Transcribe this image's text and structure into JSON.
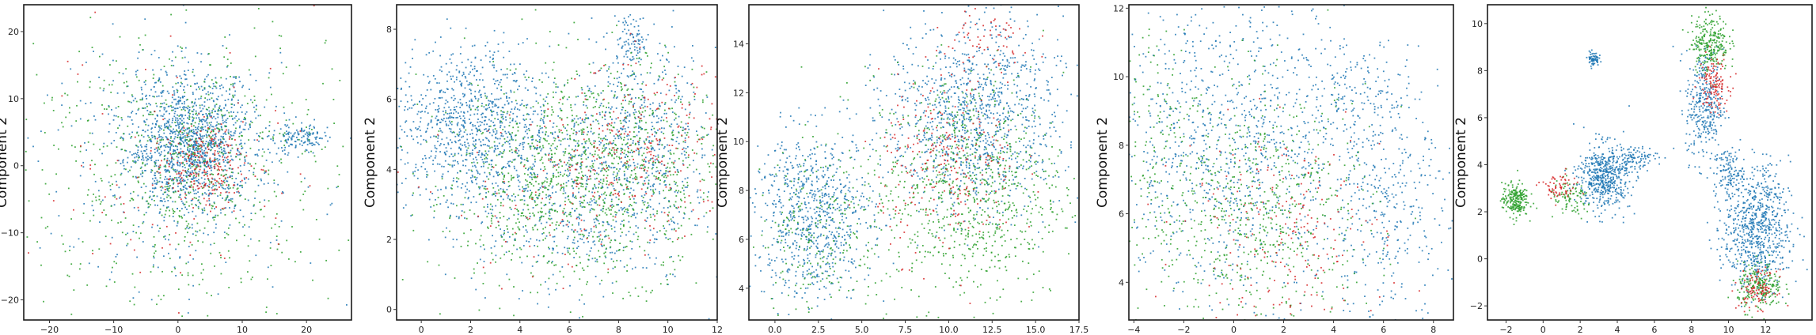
{
  "colors": {
    "blue": "#1f77b4",
    "green": "#2ca02c",
    "red": "#d62728"
  },
  "chart_data": [
    {
      "type": "scatter",
      "ylabel": "Component 2",
      "xlim": [
        -24,
        27
      ],
      "ylim": [
        -23,
        24
      ],
      "xticks": [
        -20,
        -10,
        0,
        10,
        20
      ],
      "yticks": [
        -20,
        -10,
        0,
        10,
        20
      ],
      "xtick_labels": [
        "−20",
        "−10",
        "0",
        "10",
        "20"
      ],
      "ytick_labels": [
        "−20",
        "−10",
        "0",
        "10",
        "20"
      ],
      "grid": false,
      "series": [
        {
          "color": "blue",
          "clusters": [
            {
              "x": 2,
              "y": 3,
              "sx": 5,
              "sy": 5,
              "w": 60
            },
            {
              "x": 19,
              "y": 4,
              "sx": 2.2,
              "sy": 1.2,
              "w": 6
            },
            {
              "x": 0,
              "y": 0,
              "sx": 11,
              "sy": 10,
              "w": 12
            }
          ]
        },
        {
          "color": "green",
          "clusters": [
            {
              "x": 0,
              "y": 0,
              "sx": 12,
              "sy": 11,
              "w": 30
            },
            {
              "x": 3,
              "y": 2,
              "sx": 5,
              "sy": 5,
              "w": 8
            }
          ]
        },
        {
          "color": "red",
          "clusters": [
            {
              "x": 4,
              "y": 0,
              "sx": 3,
              "sy": 3,
              "w": 10
            },
            {
              "x": 0,
              "y": 0,
              "sx": 11,
              "sy": 10,
              "w": 4
            }
          ]
        }
      ]
    },
    {
      "type": "scatter",
      "ylabel": "Component 2",
      "xlim": [
        -1,
        12
      ],
      "ylim": [
        -0.3,
        8.7
      ],
      "xticks": [
        0,
        2,
        4,
        6,
        8,
        10,
        12
      ],
      "yticks": [
        0,
        2,
        4,
        6,
        8
      ],
      "xtick_labels": [
        "0",
        "2",
        "4",
        "6",
        "8",
        "10",
        "12"
      ],
      "ytick_labels": [
        "0",
        "2",
        "4",
        "6",
        "8"
      ],
      "grid": false,
      "series": [
        {
          "color": "blue",
          "clusters": [
            {
              "x": 2,
              "y": 5.3,
              "sx": 1.6,
              "sy": 1.1,
              "w": 40
            },
            {
              "x": 6,
              "y": 3.3,
              "sx": 2.5,
              "sy": 1.4,
              "w": 30
            },
            {
              "x": 9,
              "y": 5,
              "sx": 1.5,
              "sy": 1.3,
              "w": 20
            },
            {
              "x": 8.5,
              "y": 7.6,
              "sx": 0.4,
              "sy": 0.4,
              "w": 4
            }
          ]
        },
        {
          "color": "green",
          "clusters": [
            {
              "x": 7.5,
              "y": 4,
              "sx": 2.3,
              "sy": 1.5,
              "w": 45
            },
            {
              "x": 4,
              "y": 3.5,
              "sx": 2,
              "sy": 1.5,
              "w": 15
            }
          ]
        },
        {
          "color": "red",
          "clusters": [
            {
              "x": 9,
              "y": 4.5,
              "sx": 1.8,
              "sy": 1.2,
              "w": 12
            },
            {
              "x": 5,
              "y": 3,
              "sx": 2,
              "sy": 1.2,
              "w": 4
            }
          ]
        }
      ]
    },
    {
      "type": "scatter",
      "ylabel": "Component 2",
      "xlim": [
        -1.5,
        17.5
      ],
      "ylim": [
        2.7,
        15.6
      ],
      "xticks": [
        0,
        2.5,
        5,
        7.5,
        10,
        12.5,
        15,
        17.5
      ],
      "yticks": [
        4,
        6,
        8,
        10,
        12,
        14
      ],
      "xtick_labels": [
        "0.0",
        "2.5",
        "5.0",
        "7.5",
        "10.0",
        "12.5",
        "15.0",
        "17.5"
      ],
      "ytick_labels": [
        "4",
        "6",
        "8",
        "10",
        "12",
        "14"
      ],
      "grid": false,
      "series": [
        {
          "color": "blue",
          "clusters": [
            {
              "x": 2.2,
              "y": 7,
              "sx": 1.7,
              "sy": 1.7,
              "w": 35
            },
            {
              "x": 11.5,
              "y": 11,
              "sx": 2.5,
              "sy": 1.9,
              "w": 50
            }
          ]
        },
        {
          "color": "green",
          "clusters": [
            {
              "x": 11,
              "y": 8,
              "sx": 2.8,
              "sy": 2.4,
              "w": 40
            },
            {
              "x": 2.5,
              "y": 6.5,
              "sx": 1.7,
              "sy": 1.7,
              "w": 10
            }
          ]
        },
        {
          "color": "red",
          "clusters": [
            {
              "x": 10,
              "y": 9,
              "sx": 2,
              "sy": 1.8,
              "w": 12
            },
            {
              "x": 12,
              "y": 14,
              "sx": 1.5,
              "sy": 0.8,
              "w": 3
            }
          ]
        }
      ]
    },
    {
      "type": "scatter",
      "ylabel": "Component 2",
      "xlim": [
        -4.2,
        8.8
      ],
      "ylim": [
        2.9,
        12.1
      ],
      "xticks": [
        -4,
        -2,
        0,
        2,
        4,
        6,
        8
      ],
      "yticks": [
        4,
        6,
        8,
        10,
        12
      ],
      "xtick_labels": [
        "−4",
        "−2",
        "0",
        "2",
        "4",
        "6",
        "8"
      ],
      "ytick_labels": [
        "4",
        "6",
        "8",
        "10",
        "12"
      ],
      "grid": false,
      "series": [
        {
          "color": "blue",
          "clusters": [
            {
              "x": 0,
              "y": 8,
              "sx": 2.5,
              "sy": 2.2,
              "w": 45
            },
            {
              "x": 6,
              "y": 6,
              "sx": 1.3,
              "sy": 1.6,
              "w": 15
            },
            {
              "x": 5,
              "y": 9.5,
              "sx": 1.5,
              "sy": 0.8,
              "w": 8
            }
          ]
        },
        {
          "color": "green",
          "clusters": [
            {
              "x": 1,
              "y": 6,
              "sx": 2.3,
              "sy": 1.8,
              "w": 30
            },
            {
              "x": -3,
              "y": 8,
              "sx": 0.7,
              "sy": 2,
              "w": 6
            }
          ]
        },
        {
          "color": "red",
          "clusters": [
            {
              "x": 2,
              "y": 5.5,
              "sx": 2,
              "sy": 1.5,
              "w": 10
            }
          ]
        }
      ]
    },
    {
      "type": "scatter",
      "ylabel": "Component 2",
      "xlim": [
        -3,
        14.5
      ],
      "ylim": [
        -2.6,
        10.8
      ],
      "xticks": [
        -2,
        0,
        2,
        4,
        6,
        8,
        10,
        12
      ],
      "yticks": [
        -2,
        0,
        2,
        4,
        6,
        8,
        10
      ],
      "xtick_labels": [
        "−2",
        "0",
        "2",
        "4",
        "6",
        "8",
        "10",
        "12"
      ],
      "ytick_labels": [
        "−2",
        "0",
        "2",
        "4",
        "6",
        "8",
        "10"
      ],
      "grid": false,
      "series": [
        {
          "color": "blue",
          "clusters": [
            {
              "x": 3.3,
              "y": 3.5,
              "sx": 0.7,
              "sy": 0.7,
              "w": 25
            },
            {
              "x": 11.5,
              "y": 1.3,
              "sx": 0.9,
              "sy": 1.3,
              "w": 35
            },
            {
              "x": 8.7,
              "y": 6.5,
              "sx": 0.5,
              "sy": 1.2,
              "w": 15
            },
            {
              "x": 2.7,
              "y": 8.5,
              "sx": 0.15,
              "sy": 0.15,
              "w": 3
            },
            {
              "x": 5,
              "y": 4.3,
              "sx": 0.6,
              "sy": 0.25,
              "w": 4
            },
            {
              "x": 10,
              "y": 3.7,
              "sx": 0.4,
              "sy": 0.5,
              "w": 5
            }
          ]
        },
        {
          "color": "green",
          "clusters": [
            {
              "x": -1.5,
              "y": 2.5,
              "sx": 0.35,
              "sy": 0.35,
              "w": 10
            },
            {
              "x": 9,
              "y": 9.2,
              "sx": 0.5,
              "sy": 0.6,
              "w": 12
            },
            {
              "x": 11.7,
              "y": -1.2,
              "sx": 0.6,
              "sy": 0.5,
              "w": 10
            },
            {
              "x": 1.5,
              "y": 2.5,
              "sx": 0.6,
              "sy": 0.4,
              "w": 4
            }
          ]
        },
        {
          "color": "red",
          "clusters": [
            {
              "x": 9.2,
              "y": 7.5,
              "sx": 0.4,
              "sy": 0.6,
              "w": 6
            },
            {
              "x": 11.6,
              "y": -1.3,
              "sx": 0.5,
              "sy": 0.4,
              "w": 5
            },
            {
              "x": 0.8,
              "y": 3,
              "sx": 0.5,
              "sy": 0.3,
              "w": 3
            }
          ]
        }
      ]
    }
  ]
}
